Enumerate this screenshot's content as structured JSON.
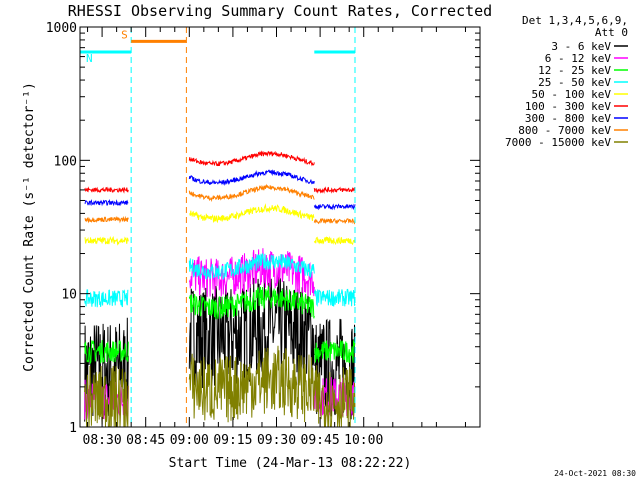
{
  "chart_data": {
    "type": "line",
    "title": "RHESSI Observing Summary Count Rates, Corrected",
    "xlabel": "Start Time (24-Mar-13 08:22:22)",
    "ylabel": "Corrected Count Rate (s⁻¹ detector⁻¹)",
    "y_scale": "log",
    "ylim": [
      1,
      1000
    ],
    "xlim_min": [
      22.4,
      160
    ],
    "x_ticks": [
      "08:30",
      "08:45",
      "09:00",
      "09:15",
      "09:30",
      "09:45",
      "10:00"
    ],
    "x_tick_min": [
      30,
      45,
      60,
      75,
      90,
      105,
      120
    ],
    "y_ticks": [
      "1",
      "10",
      "100",
      "1000"
    ],
    "y_tick_vals": [
      1,
      10,
      100,
      1000
    ],
    "legend_header": [
      "Det 1,3,4,5,6,9,",
      "Att 0"
    ],
    "flags": [
      {
        "letter": "S",
        "color": "#ff8000",
        "start": 40,
        "end": 59,
        "value": 780
      },
      {
        "letter": "N",
        "color": "#00ffff",
        "start": 22.4,
        "end": 40,
        "value": 650
      },
      {
        "letter": "",
        "color": "#00ffff",
        "start": 103,
        "end": 117,
        "value": 650
      }
    ],
    "vlines": [
      {
        "minute": 40,
        "color": "#00ffff"
      },
      {
        "minute": 59,
        "color": "#ff8000"
      },
      {
        "minute": 117,
        "color": "#00ffff"
      }
    ],
    "segments": [
      [
        24,
        39
      ],
      [
        60,
        103
      ],
      [
        103,
        117
      ]
    ],
    "series": [
      {
        "name": "3 - 6 keV",
        "color": "#000000",
        "levels": [
          2.7,
          4.5,
          2.8
        ],
        "noise": 0.9
      },
      {
        "name": "6 - 12 keV",
        "color": "#ff00ff",
        "levels": [
          1.6,
          12.5,
          1.7
        ],
        "noise": 0.35
      },
      {
        "name": "12 - 25 keV",
        "color": "#00ff00",
        "levels": [
          3.7,
          7.5,
          3.7
        ],
        "noise": 0.2
      },
      {
        "name": "25 - 50 keV",
        "color": "#00ffff",
        "levels": [
          9.2,
          14.0,
          9.3
        ],
        "noise": 0.15
      },
      {
        "name": "50 - 100 keV",
        "color": "#ffff00",
        "levels": [
          25,
          35,
          25
        ],
        "noise": 0.06
      },
      {
        "name": "100 - 300 keV",
        "color": "#ff0000",
        "levels": [
          60,
          90,
          60
        ],
        "noise": 0.04
      },
      {
        "name": "300 - 800 keV",
        "color": "#0000ff",
        "levels": [
          48,
          65,
          45
        ],
        "noise": 0.04
      },
      {
        "name": "800 - 7000 keV",
        "color": "#ff8000",
        "levels": [
          36,
          50,
          35
        ],
        "noise": 0.04
      },
      {
        "name": "7000 - 15000 keV",
        "color": "#808000",
        "levels": [
          1.6,
          1.8,
          1.6
        ],
        "noise": 0.6
      }
    ],
    "grid": false,
    "legend_position": "right"
  },
  "footer_timestamp": "24-Oct-2021 08:30"
}
